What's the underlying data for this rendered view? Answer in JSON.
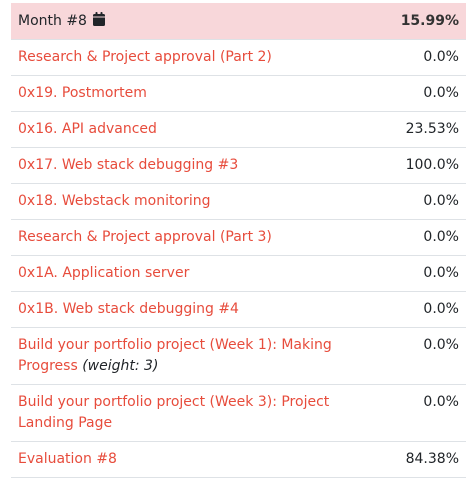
{
  "month": {
    "title": "Month #8",
    "score": "15.99%",
    "icon": "calendar-icon",
    "row_color": "#f8d7da"
  },
  "link_color": "#e74c3c",
  "projects": [
    {
      "name": "Research & Project approval (Part 2)",
      "weight": "",
      "score": "0.0%"
    },
    {
      "name": "0x19. Postmortem",
      "weight": "",
      "score": "0.0%"
    },
    {
      "name": "0x16. API advanced",
      "weight": "",
      "score": "23.53%"
    },
    {
      "name": "0x17. Web stack debugging #3",
      "weight": "",
      "score": "100.0%"
    },
    {
      "name": "0x18. Webstack monitoring",
      "weight": "",
      "score": "0.0%"
    },
    {
      "name": "Research & Project approval (Part 3)",
      "weight": "",
      "score": "0.0%"
    },
    {
      "name": "0x1A. Application server",
      "weight": "",
      "score": "0.0%"
    },
    {
      "name": "0x1B. Web stack debugging #4",
      "weight": "",
      "score": "0.0%"
    },
    {
      "name": "Build your portfolio project (Week 1): Making Progress",
      "weight": "(weight: 3)",
      "score": "0.0%"
    },
    {
      "name": "Build your portfolio project (Week 3): Project Landing Page",
      "weight": "",
      "score": "0.0%"
    },
    {
      "name": "Evaluation #8",
      "weight": "",
      "score": "84.38%"
    }
  ]
}
